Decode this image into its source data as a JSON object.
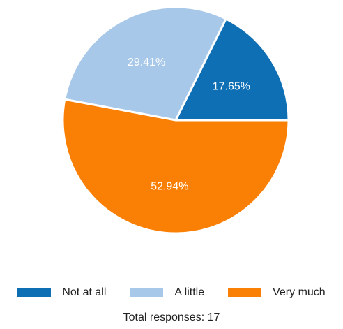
{
  "chart_data": {
    "type": "pie",
    "categories": [
      "Not at all",
      "A little",
      "Very much"
    ],
    "values": [
      17.65,
      29.41,
      52.94
    ],
    "labels": [
      "17.65%",
      "29.41%",
      "52.94%"
    ],
    "colors": [
      "#0f6fb5",
      "#a8c8ea",
      "#fa8005"
    ],
    "legend_position": "bottom",
    "footer": "Total responses: 17"
  }
}
